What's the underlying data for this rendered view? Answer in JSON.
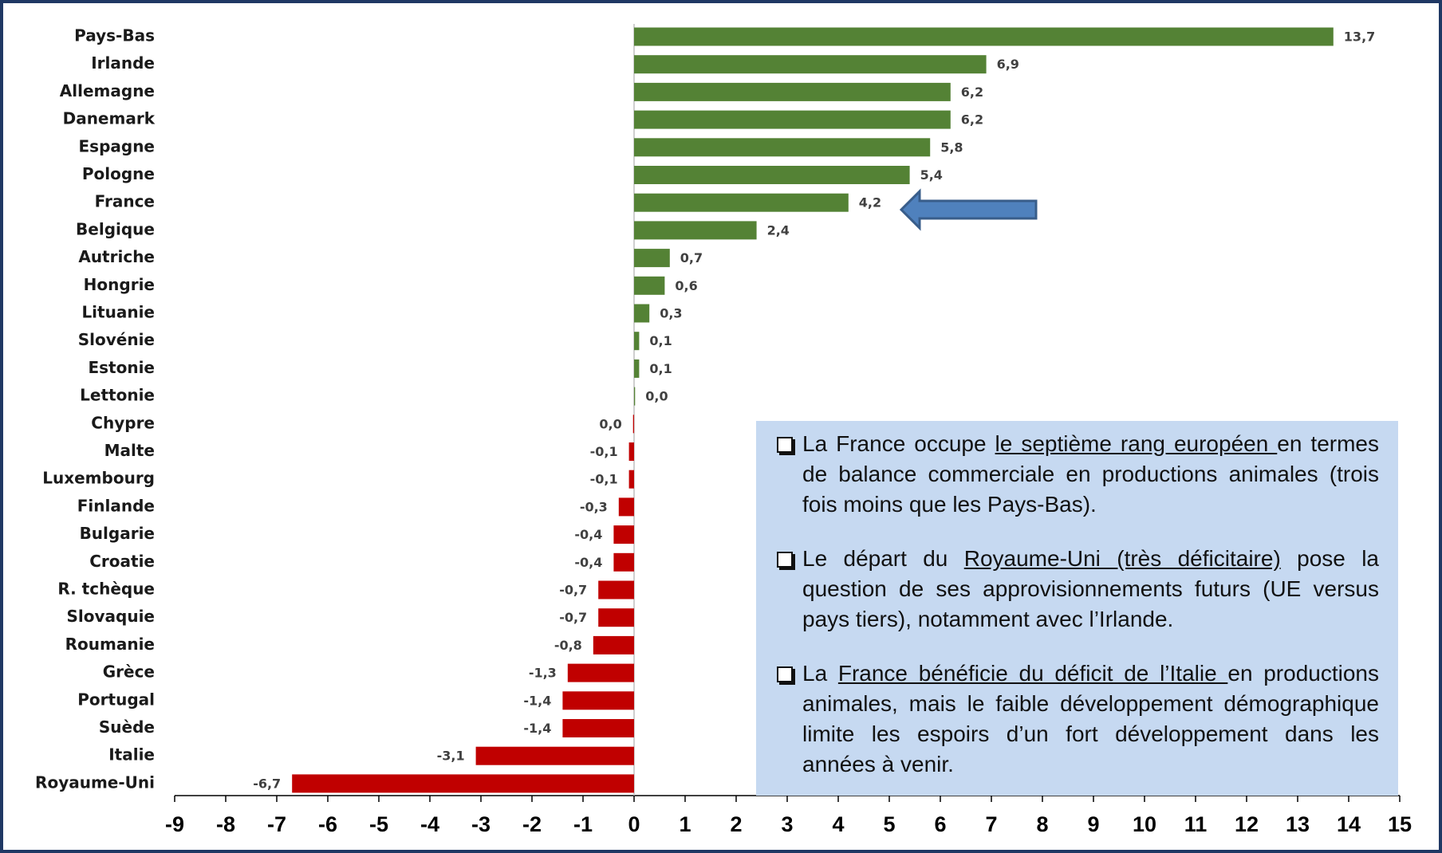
{
  "chart_data": {
    "type": "hbar",
    "categories": [
      "Pays-Bas",
      "Irlande",
      "Allemagne",
      "Danemark",
      "Espagne",
      "Pologne",
      "France",
      "Belgique",
      "Autriche",
      "Hongrie",
      "Lituanie",
      "Slovénie",
      "Estonie",
      "Lettonie",
      "Chypre",
      "Malte",
      "Luxembourg",
      "Finlande",
      "Bulgarie",
      "Croatie",
      "R. tchèque",
      "Slovaquie",
      "Roumanie",
      "Grèce",
      "Portugal",
      "Suède",
      "Italie",
      "Royaume-Uni"
    ],
    "values": [
      13.7,
      6.9,
      6.2,
      6.2,
      5.8,
      5.4,
      4.2,
      2.4,
      0.7,
      0.6,
      0.3,
      0.1,
      0.1,
      0.02,
      -0.02,
      -0.1,
      -0.1,
      -0.3,
      -0.4,
      -0.4,
      -0.7,
      -0.7,
      -0.8,
      -1.3,
      -1.4,
      -1.4,
      -3.1,
      -6.7
    ],
    "value_labels": [
      "13,7",
      "6,9",
      "6,2",
      "6,2",
      "5,8",
      "5,4",
      "4,2",
      "2,4",
      "0,7",
      "0,6",
      "0,3",
      "0,1",
      "0,1",
      "0,0",
      "0,0",
      "-0,1",
      "-0,1",
      "-0,3",
      "-0,4",
      "-0,4",
      "-0,7",
      "-0,7",
      "-0,8",
      "-1,3",
      "-1,4",
      "-1,4",
      "-3,1",
      "-6,7"
    ],
    "color_positive": "#548235",
    "color_negative": "#c00000",
    "xlim": [
      -9,
      15
    ],
    "xticks": [
      -9,
      -8,
      -7,
      -6,
      -5,
      -4,
      -3,
      -2,
      -1,
      0,
      1,
      2,
      3,
      4,
      5,
      6,
      7,
      8,
      9,
      10,
      11,
      12,
      13,
      14,
      15
    ],
    "annotations": [
      {
        "before": "La France occupe ",
        "underlined": "le septième rang européen ",
        "after": "en termes de balance commerciale en productions animales (trois fois moins que les Pays-Bas)."
      },
      {
        "before": " Le départ du ",
        "underlined": "Royaume-Uni (très déficitaire)",
        "after": " pose la question de ses approvisionnements futurs (UE versus pays tiers), notamment avec l’Irlande."
      },
      {
        "before": "La ",
        "underlined": "France bénéficie du déficit de l’Italie ",
        "after": "en productions animales, mais le faible développement démographique limite les espoirs d’un fort développement dans les années à venir."
      }
    ]
  }
}
